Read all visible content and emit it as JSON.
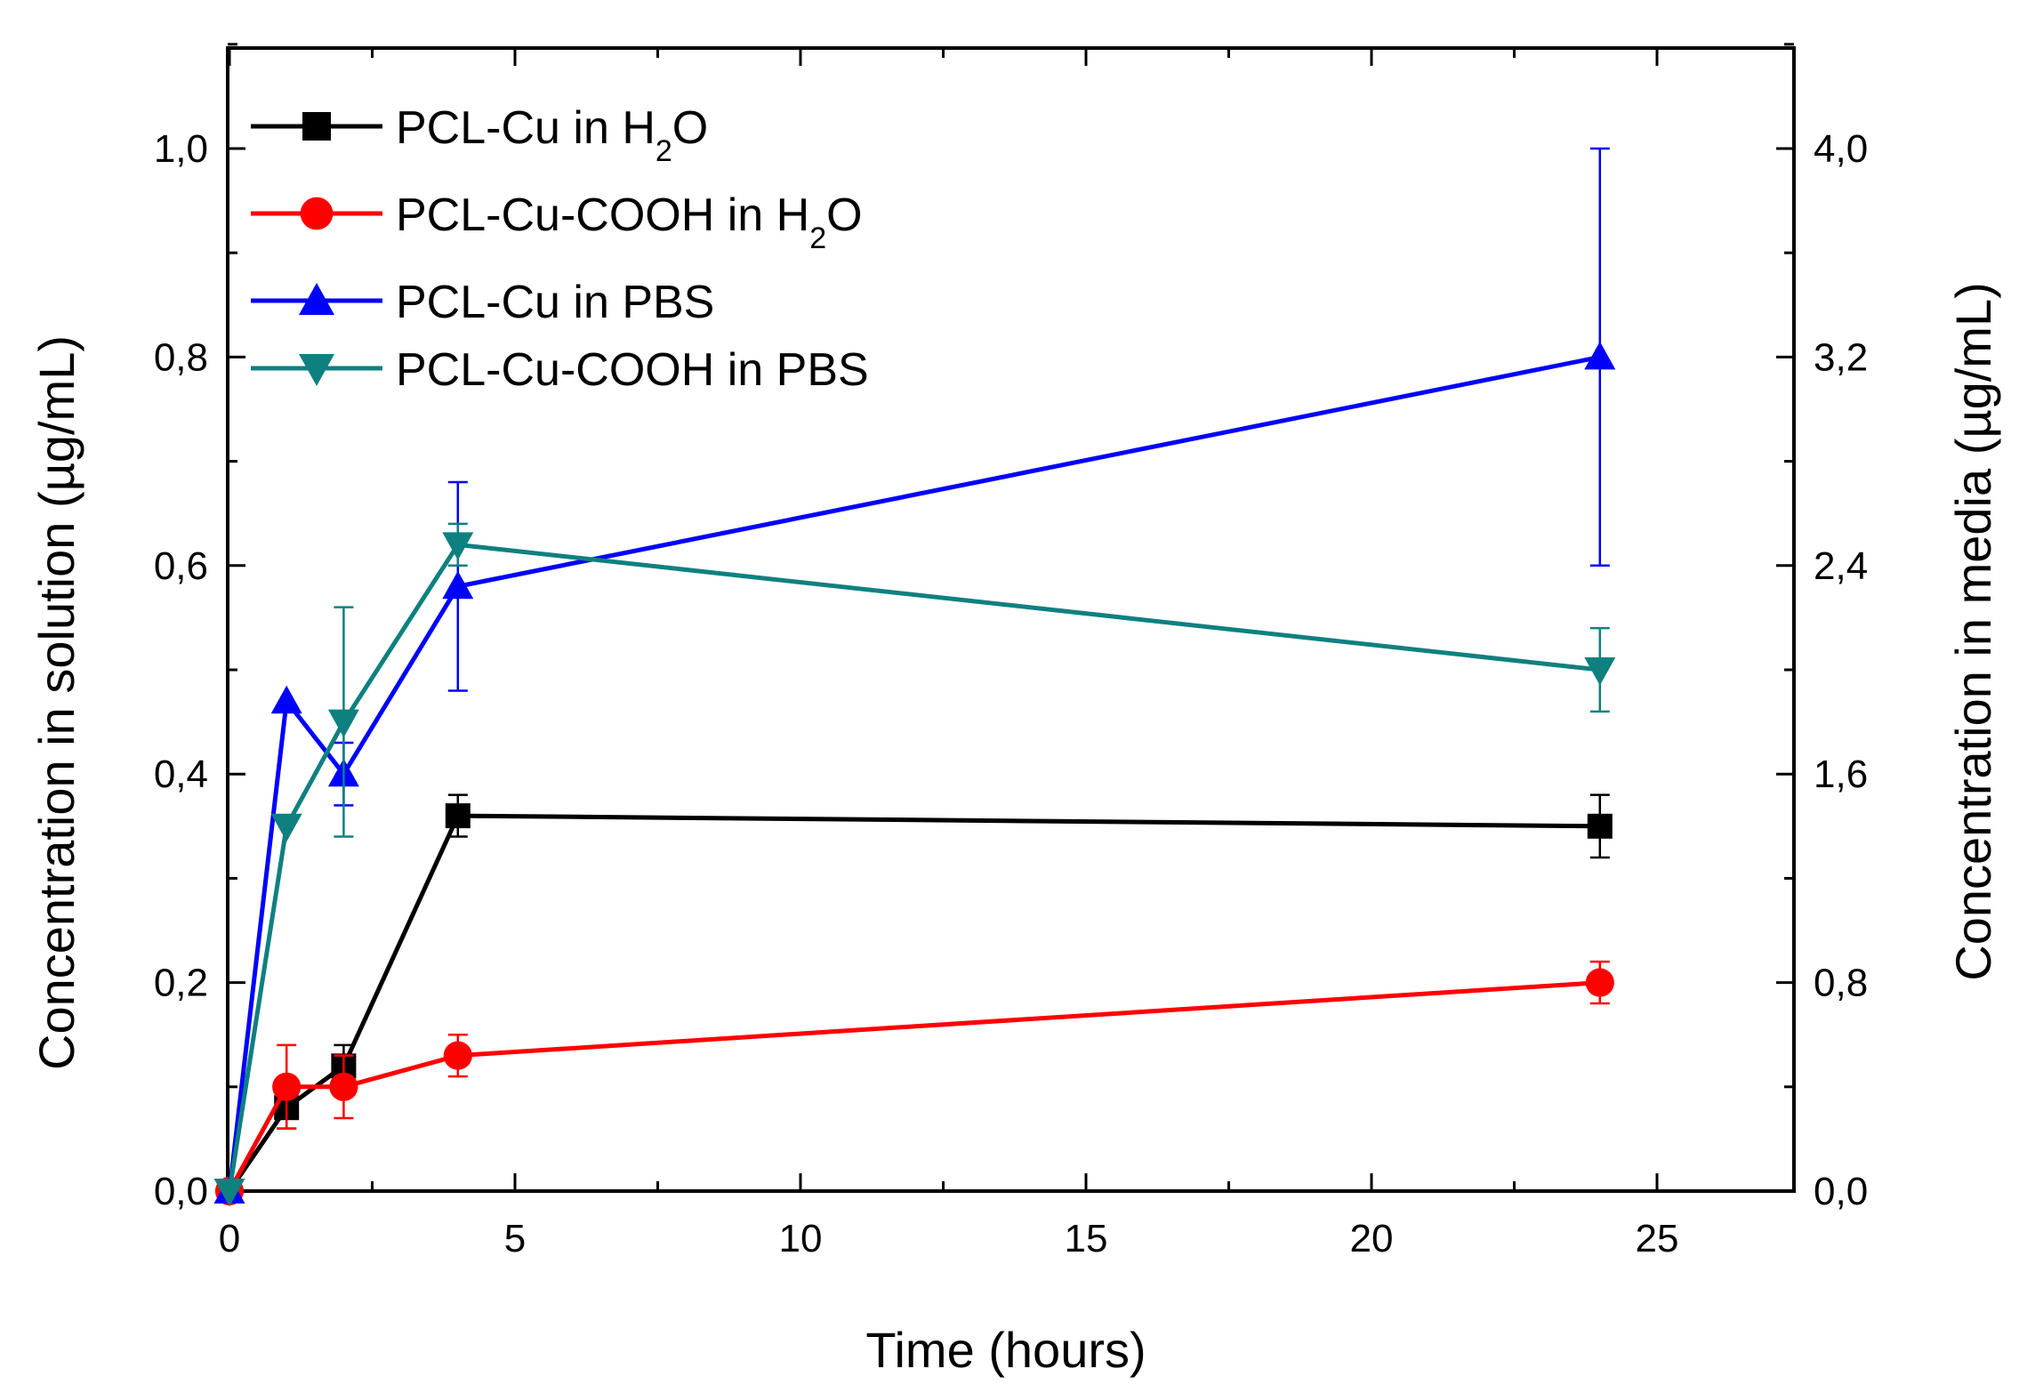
{
  "chart_data": {
    "type": "line",
    "title": "",
    "xlabel": "Time (hours)",
    "ylabel": "Concentration in solution (µg/mL)",
    "ylabel_right": "Concentration in media (µg/mL)",
    "xlim": [
      0,
      27.4
    ],
    "ylim": [
      0,
      1.1
    ],
    "ylim_right": [
      0,
      4.4
    ],
    "x_ticks": [
      0,
      5,
      10,
      15,
      20,
      25
    ],
    "x_tick_labels": [
      "0",
      "5",
      "10",
      "15",
      "20",
      "25"
    ],
    "y_ticks": [
      0,
      0.2,
      0.4,
      0.6,
      0.8,
      1.0
    ],
    "y_tick_labels": [
      "0,0",
      "0,2",
      "0,4",
      "0,6",
      "0,8",
      "1,0"
    ],
    "y2_ticks": [
      0,
      0.8,
      1.6,
      2.4,
      3.2,
      4.0
    ],
    "y2_tick_labels": [
      "0,0",
      "0,8",
      "1,6",
      "2,4",
      "3,2",
      "4,0"
    ],
    "legend_position": "top-left",
    "series": [
      {
        "name": "PCL-Cu in H2O",
        "label_main": "PCL-Cu in H",
        "label_sub": "2",
        "label_tail": "O",
        "color": "#000000",
        "marker": "square",
        "x": [
          0,
          1,
          2,
          4,
          24
        ],
        "values": [
          0,
          0.08,
          0.12,
          0.36,
          0.35
        ],
        "errors": [
          0,
          0.02,
          0.02,
          0.02,
          0.03
        ]
      },
      {
        "name": "PCL-Cu-COOH in H2O",
        "label_main": "PCL-Cu-COOH in H",
        "label_sub": "2",
        "label_tail": "O",
        "color": "#ff0000",
        "marker": "circle",
        "x": [
          0,
          1,
          2,
          4,
          24
        ],
        "values": [
          0,
          0.1,
          0.1,
          0.13,
          0.2
        ],
        "errors": [
          0,
          0.04,
          0.03,
          0.02,
          0.02
        ]
      },
      {
        "name": "PCL-Cu in PBS",
        "label_main": "PCL-Cu in PBS",
        "label_sub": "",
        "label_tail": "",
        "color": "#0000ff",
        "marker": "triangle-up",
        "x": [
          0,
          1,
          2,
          4,
          24
        ],
        "values": [
          0,
          0.47,
          0.4,
          0.58,
          0.8
        ],
        "errors": [
          0,
          0.0,
          0.03,
          0.1,
          0.2
        ]
      },
      {
        "name": "PCL-Cu-COOH in PBS",
        "label_main": "PCL-Cu-COOH in PBS",
        "label_sub": "",
        "label_tail": "",
        "color": "#0e8080",
        "marker": "triangle-down",
        "x": [
          0,
          1,
          2,
          4,
          24
        ],
        "values": [
          0,
          0.35,
          0.45,
          0.62,
          0.5
        ],
        "errors": [
          0,
          0.0,
          0.11,
          0.02,
          0.04
        ]
      }
    ]
  }
}
